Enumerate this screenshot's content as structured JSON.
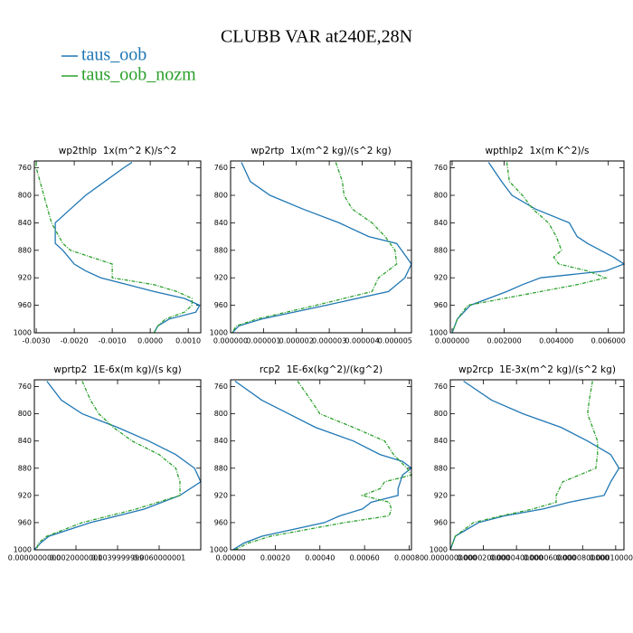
{
  "title": "CLUBB VAR at240E,28N",
  "chart_data": [
    {
      "type": "line",
      "title": "wp2thlp  1x(m^2 K)/s^2",
      "yinvert": true,
      "y": [
        752,
        760,
        780,
        800,
        820,
        840,
        860,
        870,
        880,
        900,
        910,
        920,
        930,
        940,
        950,
        960,
        970,
        980,
        990,
        1000
      ],
      "series": [
        {
          "name": "taus_oob",
          "color": "#1f77b4",
          "dash": false,
          "values": [
            -0.00048,
            -0.0007,
            -0.0012,
            -0.0017,
            -0.0021,
            -0.0025,
            -0.0025,
            -0.0025,
            -0.0023,
            -0.002,
            -0.0017,
            -0.0013,
            -0.0006,
            0.0001,
            0.0009,
            0.0013,
            0.0012,
            0.0005,
            0.0002,
            0.0001
          ]
        },
        {
          "name": "taus_oob_nozm",
          "color": "#2ca02c",
          "dash": true,
          "values": [
            -0.003,
            -0.003,
            -0.0029,
            -0.0028,
            -0.0027,
            -0.0026,
            -0.0024,
            -0.0023,
            -0.0021,
            -0.001,
            -0.001,
            -0.001,
            0.0001,
            0.0007,
            0.0011,
            0.0011,
            0.0009,
            0.0004,
            0.0002,
            0.0001
          ]
        }
      ],
      "xlim": [
        -0.00305,
        0.00133
      ],
      "xticks": [
        {
          "value": -0.003,
          "label": "-0.0030"
        },
        {
          "value": -0.002,
          "label": "-0.0020"
        },
        {
          "value": -0.001,
          "label": "-0.0010"
        },
        {
          "value": 0,
          "label": "0.0000"
        },
        {
          "value": 0.001,
          "label": "0.0010"
        }
      ],
      "ylim": [
        750,
        1000
      ],
      "yticks": [
        760,
        800,
        840,
        880,
        920,
        960,
        1000
      ]
    },
    {
      "type": "line",
      "title": "wp2rtp  1x(m^2 kg)/(s^2 kg)",
      "yinvert": true,
      "y": [
        752,
        780,
        800,
        820,
        840,
        860,
        870,
        880,
        900,
        920,
        940,
        960,
        980,
        990,
        1000
      ],
      "series": [
        {
          "name": "taus_oob",
          "color": "#1f77b4",
          "dash": false,
          "values": [
            3.3e-07,
            6e-07,
            1.2e-06,
            2.2e-06,
            3.3e-06,
            4.2e-06,
            5.05e-06,
            5.2e-06,
            5.5e-06,
            5.3e-06,
            4.8e-06,
            2.9e-06,
            9.5e-07,
            2.5e-07,
            5e-08
          ]
        },
        {
          "name": "taus_oob_nozm",
          "color": "#2ca02c",
          "dash": true,
          "values": [
            3.2e-06,
            3.4e-06,
            3.45e-06,
            3.7e-06,
            4.3e-06,
            4.7e-06,
            4.85e-06,
            5e-06,
            5.05e-06,
            4.5e-06,
            4.3e-06,
            2.6e-06,
            8e-07,
            1.7e-07,
            5e-08
          ]
        }
      ],
      "xlim": [
        0,
        5.5e-06
      ],
      "xticks": [
        {
          "value": 0,
          "label": "0.000000"
        },
        {
          "value": 1e-06,
          "label": "0.000001"
        },
        {
          "value": 2e-06,
          "label": "0.000002"
        },
        {
          "value": 3e-06,
          "label": "0.000003"
        },
        {
          "value": 4e-06,
          "label": "0.000004"
        },
        {
          "value": 5e-06,
          "label": "0.000005"
        }
      ],
      "ylim": [
        750,
        1000
      ],
      "yticks": [
        760,
        800,
        840,
        880,
        920,
        960,
        1000
      ]
    },
    {
      "type": "line",
      "title": "wpthlp2  1x(m K^2)/s",
      "yinvert": true,
      "y": [
        752,
        780,
        800,
        820,
        840,
        860,
        870,
        880,
        890,
        900,
        910,
        920,
        930,
        940,
        960,
        980,
        1000
      ],
      "series": [
        {
          "name": "taus_oob",
          "color": "#1f77b4",
          "dash": false,
          "values": [
            0.0014,
            0.0019,
            0.0023,
            0.0032,
            0.0045,
            0.0048,
            0.0052,
            0.0057,
            0.0062,
            0.0066,
            0.0059,
            0.0034,
            0.0027,
            0.0021,
            0.0007,
            0.0002,
            0
          ]
        },
        {
          "name": "taus_oob_nozm",
          "color": "#2ca02c",
          "dash": true,
          "values": [
            0.0021,
            0.0022,
            0.0027,
            0.0031,
            0.0037,
            0.004,
            0.0041,
            0.0042,
            0.0039,
            0.0041,
            0.0052,
            0.0059,
            0.0048,
            0.0034,
            0.0006,
            0.0002,
            0
          ]
        }
      ],
      "xlim": [
        -7e-05,
        0.0066
      ],
      "xticks": [
        {
          "value": 0,
          "label": "0.000000"
        },
        {
          "value": 0.002,
          "label": "0.002000"
        },
        {
          "value": 0.004,
          "label": "0.004000"
        },
        {
          "value": 0.006,
          "label": "0.006000"
        }
      ],
      "ylim": [
        750,
        1000
      ],
      "yticks": [
        760,
        800,
        840,
        880,
        920,
        960,
        1000
      ]
    },
    {
      "type": "line",
      "title": "wprtp2  1E-6x(m kg)/(s kg)",
      "yinvert": true,
      "y": [
        752,
        780,
        800,
        820,
        840,
        860,
        880,
        900,
        920,
        940,
        960,
        980,
        990,
        1000
      ],
      "series": [
        {
          "name": "taus_oob",
          "color": "#1f77b4",
          "dash": false,
          "values": [
            0.0006,
            0.0013,
            0.0023,
            0.004,
            0.0055,
            0.0068,
            0.0077,
            0.008,
            0.007,
            0.0053,
            0.0027,
            0.0007,
            0.0003,
            0
          ]
        },
        {
          "name": "taus_oob_nozm",
          "color": "#2ca02c",
          "dash": true,
          "values": [
            0.0023,
            0.0027,
            0.0031,
            0.0038,
            0.0047,
            0.006,
            0.0068,
            0.007,
            0.007,
            0.0049,
            0.0023,
            0.0006,
            0.0002,
            0.0001
          ]
        }
      ],
      "xlim": [
        0,
        0.008
      ],
      "xticks": [
        {
          "value": 0,
          "label": "0.0000000000"
        },
        {
          "value": 0.0020000001,
          "label": "0.0020000001"
        },
        {
          "value": 0.0039999999,
          "label": "0.0039999999"
        },
        {
          "value": 0.0060000001,
          "label": "0.0060000001"
        }
      ],
      "ylim": [
        750,
        1000
      ],
      "yticks": [
        760,
        800,
        840,
        880,
        920,
        960,
        1000
      ]
    },
    {
      "type": "line",
      "title": "rcp2  1E-6x(kg^2)/(kg^2)",
      "yinvert": true,
      "y": [
        752,
        780,
        800,
        820,
        840,
        860,
        870,
        880,
        890,
        900,
        910,
        920,
        930,
        940,
        950,
        960,
        980,
        990,
        1000
      ],
      "series": [
        {
          "name": "taus_oob",
          "color": "#1f77b4",
          "dash": false,
          "values": [
            2e-05,
            0.00014,
            0.00026,
            0.00038,
            0.00055,
            0.00067,
            0.00077,
            0.00081,
            0.00077,
            0.00076,
            0.00075,
            0.00075,
            0.00063,
            0.00059,
            0.00049,
            0.00042,
            0.00014,
            6e-05,
            1e-05
          ]
        },
        {
          "name": "taus_oob_nozm",
          "color": "#2ca02c",
          "dash": true,
          "values": [
            0.0003,
            0.00036,
            0.0004,
            0.00055,
            0.00069,
            0.00073,
            0.00076,
            0.00079,
            0.00081,
            0.00069,
            0.00067,
            0.00059,
            0.00071,
            0.00072,
            0.00071,
            0.00051,
            0.00018,
            8e-05,
            2e-05
          ]
        }
      ],
      "xlim": [
        0,
        0.00081
      ],
      "xticks": [
        {
          "value": 0,
          "label": "0.00000"
        },
        {
          "value": 0.0002,
          "label": "0.00020"
        },
        {
          "value": 0.0004,
          "label": "0.00040"
        },
        {
          "value": 0.0006,
          "label": "0.00060"
        },
        {
          "value": 0.0008,
          "label": "0.00080"
        }
      ],
      "ylim": [
        750,
        1000
      ],
      "yticks": [
        760,
        800,
        840,
        880,
        920,
        960,
        1000
      ]
    },
    {
      "type": "line",
      "title": "wp2rcp  1E-3x(m^2 kg)/(s^2 kg)",
      "yinvert": true,
      "y": [
        752,
        780,
        800,
        820,
        840,
        860,
        880,
        900,
        920,
        930,
        940,
        950,
        960,
        980,
        1000
      ],
      "series": [
        {
          "name": "taus_oob",
          "color": "#1f77b4",
          "dash": false,
          "values": [
            8e-06,
            2.5e-05,
            4.4e-05,
            6.7e-05,
            8.3e-05,
            9.7e-05,
            0.000102,
            9.7e-05,
            9.3e-05,
            7.2e-05,
            5.6e-05,
            3.3e-05,
            1.7e-05,
            3e-06,
            0
          ]
        },
        {
          "name": "taus_oob_nozm",
          "color": "#2ca02c",
          "dash": true,
          "values": [
            8.6e-05,
            8.4e-05,
            8.3e-05,
            8.6e-05,
            8.9e-05,
            8.9e-05,
            8.8e-05,
            6.8e-05,
            6.4e-05,
            6.4e-05,
            5e-05,
            3.1e-05,
            1.4e-05,
            3e-06,
            0
          ]
        }
      ],
      "xlim": [
        0,
        0.000105
      ],
      "xticks": [
        {
          "value": 0,
          "label": "0.0000000000"
        },
        {
          "value": 2e-05,
          "label": "0.0000200000"
        },
        {
          "value": 4e-05,
          "label": "0.0000400000"
        },
        {
          "value": 6e-05,
          "label": "0.0000600000"
        },
        {
          "value": 8e-05,
          "label": "0.0000800000"
        },
        {
          "value": 0.0001,
          "label": "0.0001000000"
        }
      ],
      "ylim": [
        750,
        1000
      ],
      "yticks": [
        760,
        800,
        840,
        880,
        920,
        960,
        1000
      ]
    }
  ]
}
